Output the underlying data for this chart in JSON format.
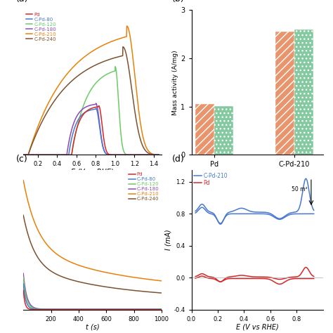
{
  "colors": {
    "Pd": "#d62728",
    "C-Pd-80": "#4878cf",
    "C-Pd-120": "#6acc65",
    "C-Pd-180": "#8b4dba",
    "C-Pd-210": "#e8810a",
    "C-Pd-240": "#7b5230"
  },
  "panel_a_xlabel": "E (V vs RHE)",
  "panel_b_ylabel": "Mass activity (A/mg)",
  "panel_c_xlabel": "t (s)",
  "panel_d_xlabel": "E (V vs RHE)",
  "panel_d_ylabel": "I (mA)",
  "bar_categories": [
    "Pd",
    "C-Pd-210"
  ],
  "bar_values_orange": [
    1.06,
    2.55
  ],
  "bar_values_green": [
    1.01,
    2.6
  ],
  "bar_color_orange": "#e8956d",
  "bar_color_green": "#85c9a0",
  "panel_b_ylim": [
    0,
    3
  ],
  "panel_b_yticks": [
    0,
    1,
    2,
    3
  ],
  "annotation_text": "50 m²",
  "panel_d_ylim": [
    -0.4,
    1.35
  ],
  "panel_d_xlim": [
    0.0,
    1.0
  ],
  "legend_labels": [
    "Pd",
    "C-Pd-80",
    "C-Pd-120",
    "C-Pd-180",
    "C-Pd-210",
    "C-Pd-240"
  ]
}
